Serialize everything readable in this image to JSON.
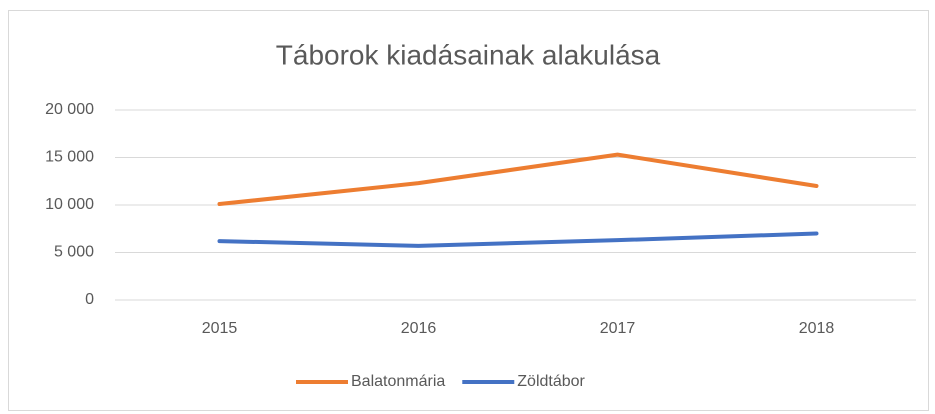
{
  "chart_data": {
    "type": "line",
    "title": "Táborok kiadásainak alakulása",
    "categories": [
      "2015",
      "2016",
      "2017",
      "2018"
    ],
    "series": [
      {
        "name": "Balatonmária",
        "color": "#ed7d31",
        "values": [
          10100,
          12300,
          15300,
          12000
        ]
      },
      {
        "name": "Zöldtábor",
        "color": "#4472c4",
        "values": [
          6200,
          5700,
          6300,
          7000
        ]
      }
    ],
    "ylim": [
      0,
      20000
    ],
    "yticks": [
      0,
      {
        "value": 5000,
        "label": "5 000"
      },
      {
        "value": 10000,
        "label": "10 000"
      },
      {
        "value": 15000,
        "label": "15 000"
      },
      {
        "value": 20000,
        "label": "20 000"
      }
    ],
    "grid": true,
    "legend": "bottom"
  }
}
